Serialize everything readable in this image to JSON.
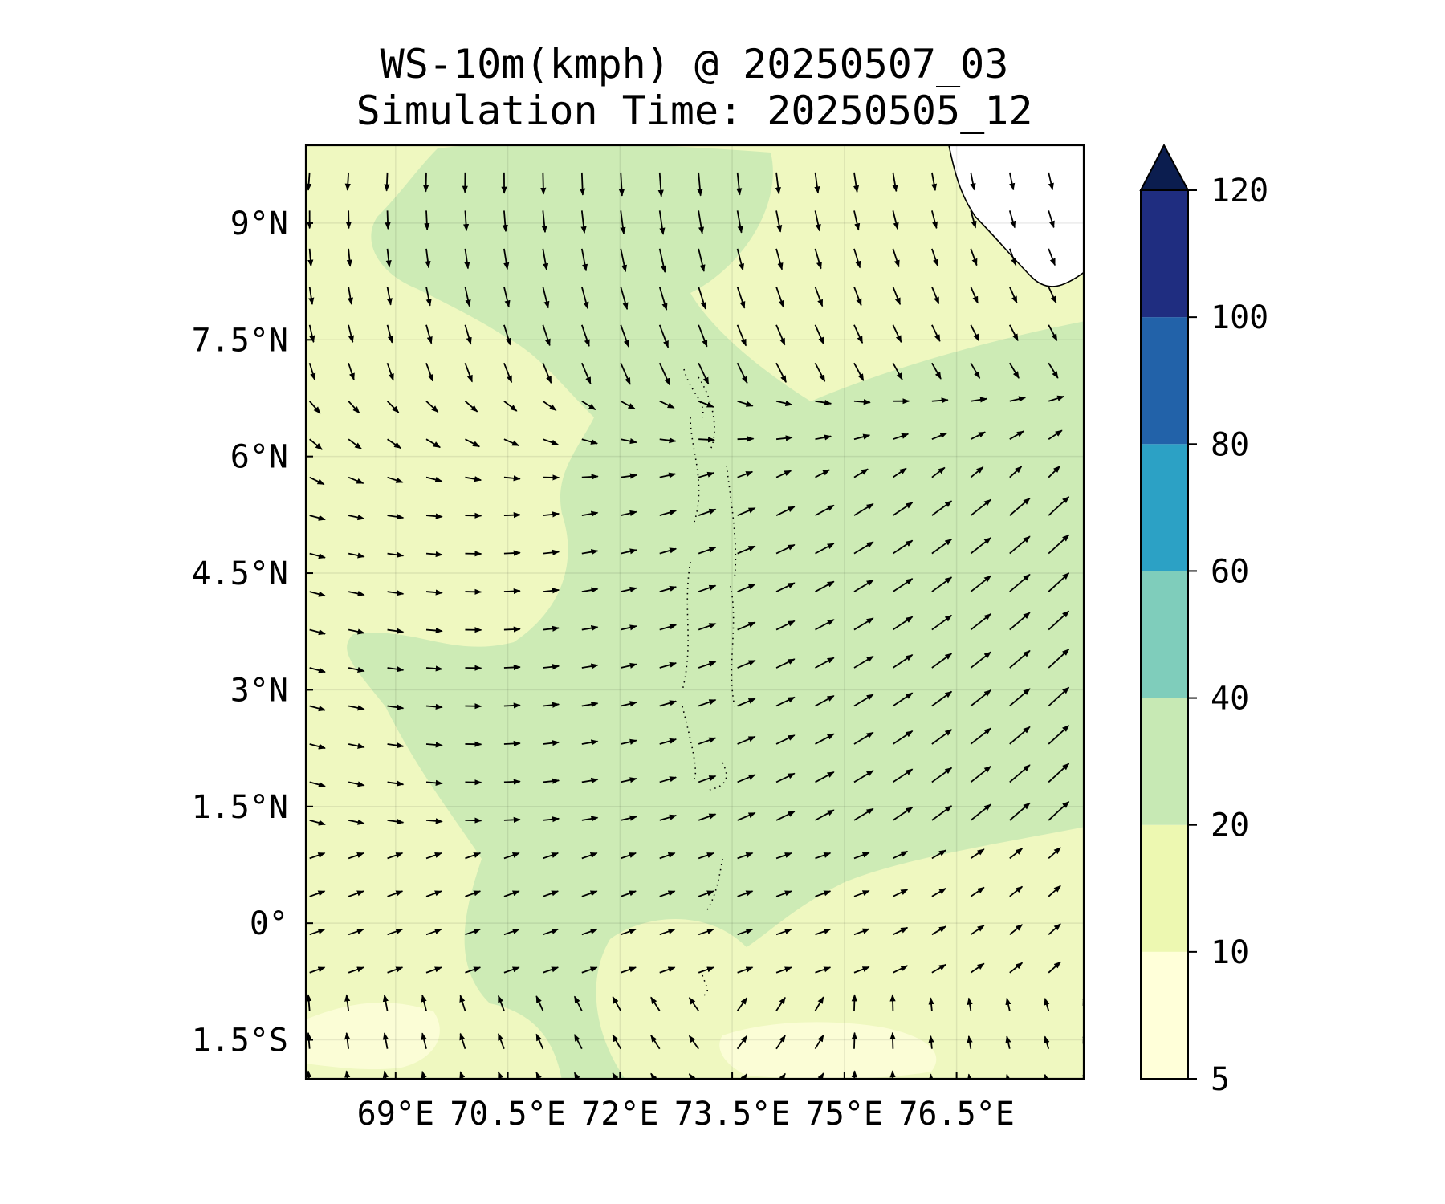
{
  "title": {
    "line1": "WS-10m(kmph) @ 20250507_03",
    "line2": "Simulation Time: 20250505_12"
  },
  "map": {
    "lon_range": [
      67.8,
      78.2
    ],
    "lat_range": [
      -2.0,
      10.0
    ],
    "x_ticks": [
      {
        "value": 69.0,
        "label": "69°E"
      },
      {
        "value": 70.5,
        "label": "70.5°E"
      },
      {
        "value": 72.0,
        "label": "72°E"
      },
      {
        "value": 73.5,
        "label": "73.5°E"
      },
      {
        "value": 75.0,
        "label": "75°E"
      },
      {
        "value": 76.5,
        "label": "76.5°E"
      }
    ],
    "y_ticks": [
      {
        "value": 9.0,
        "label": "9°N"
      },
      {
        "value": 7.5,
        "label": "7.5°N"
      },
      {
        "value": 6.0,
        "label": "6°N"
      },
      {
        "value": 4.5,
        "label": "4.5°N"
      },
      {
        "value": 3.0,
        "label": "3°N"
      },
      {
        "value": 1.5,
        "label": "1.5°N"
      },
      {
        "value": 0.0,
        "label": "0°"
      },
      {
        "value": -1.5,
        "label": "1.5°S"
      }
    ],
    "background_color": "#eff8c0",
    "zone_20_40_color": "#cdebb5",
    "zone_5_10_color": "#fbfdd6",
    "land_color": "#ffffff",
    "grid": true
  },
  "colorbar": {
    "levels": [
      "5",
      "10",
      "20",
      "40",
      "60",
      "80",
      "100",
      "120"
    ],
    "colors": [
      "#ffffd9",
      "#edf8b1",
      "#c7e9b4",
      "#7fcdbb",
      "#2ca1c5",
      "#2262a9",
      "#1f2d80"
    ],
    "extend_color": "#0b1d4f"
  }
}
